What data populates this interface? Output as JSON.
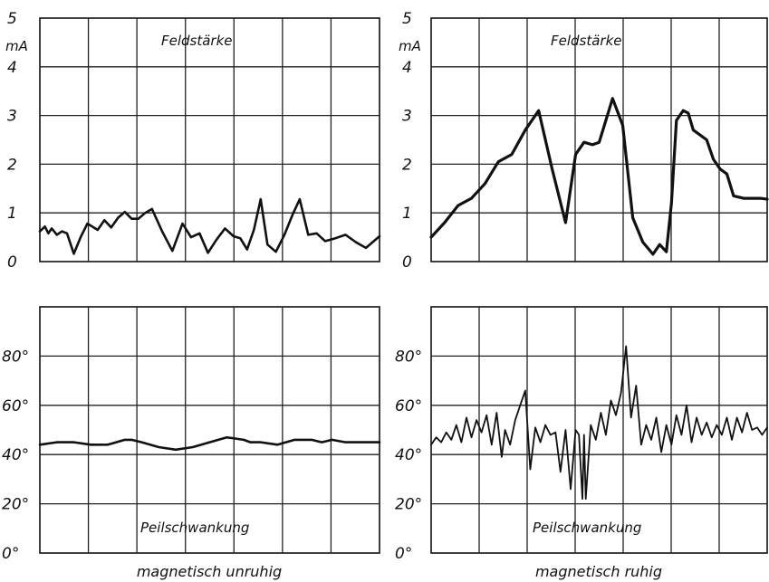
{
  "captions": {
    "left": "magnetisch unruhig",
    "right": "magnetisch ruhig"
  },
  "chart_data": [
    {
      "type": "line",
      "title": "Feldstärke",
      "ylabel": "mA",
      "ylim": [
        0,
        5
      ],
      "yticks": [
        "0",
        "1",
        "2",
        "3",
        "4",
        "5"
      ],
      "xlim": [
        0,
        100
      ],
      "grid": true,
      "series": [
        {
          "x": [
            0,
            1.5,
            2.5,
            3.5,
            5,
            6.5,
            8,
            10,
            12,
            14,
            17,
            19,
            21,
            23,
            25,
            27,
            29,
            31,
            33,
            36,
            39,
            42,
            44.5,
            47,
            49.5,
            52,
            54.5,
            57,
            59,
            61,
            63,
            65,
            67,
            69.5,
            72,
            74.5,
            76.5,
            79,
            81.5,
            84,
            87,
            90,
            93,
            96,
            100
          ],
          "values": [
            0.62,
            0.72,
            0.58,
            0.68,
            0.55,
            0.62,
            0.58,
            0.16,
            0.5,
            0.78,
            0.65,
            0.85,
            0.7,
            0.9,
            1.02,
            0.88,
            0.88,
            1.0,
            1.08,
            0.62,
            0.22,
            0.78,
            0.5,
            0.58,
            0.18,
            0.45,
            0.68,
            0.52,
            0.48,
            0.25,
            0.65,
            1.28,
            0.35,
            0.2,
            0.55,
            0.98,
            1.28,
            0.55,
            0.58,
            0.42,
            0.48,
            0.55,
            0.4,
            0.28,
            0.52
          ]
        }
      ]
    },
    {
      "type": "line",
      "title": "Feldstärke",
      "ylabel": "mA",
      "ylim": [
        0,
        5
      ],
      "yticks": [
        "0",
        "1",
        "2",
        "3",
        "4",
        "5"
      ],
      "xlim": [
        0,
        100
      ],
      "grid": true,
      "series": [
        {
          "x": [
            0,
            4,
            8,
            12,
            16,
            20,
            24,
            28,
            32,
            36,
            40,
            43,
            45.5,
            48,
            50,
            52,
            54,
            57,
            60,
            63,
            66,
            68,
            70,
            71.5,
            73,
            75,
            76.5,
            78,
            80,
            82,
            84,
            86,
            88,
            90,
            93,
            96,
            98,
            100
          ],
          "values": [
            0.5,
            0.8,
            1.15,
            1.3,
            1.6,
            2.05,
            2.2,
            2.7,
            3.1,
            1.9,
            0.8,
            2.2,
            2.45,
            2.4,
            2.45,
            2.9,
            3.35,
            2.8,
            0.9,
            0.4,
            0.15,
            0.35,
            0.2,
            1.2,
            2.9,
            3.1,
            3.05,
            2.7,
            2.6,
            2.5,
            2.1,
            1.9,
            1.8,
            1.35,
            1.3,
            1.3,
            1.3,
            1.28
          ]
        }
      ]
    },
    {
      "type": "line",
      "title": "Peilschwankung",
      "ylim": [
        0,
        100
      ],
      "yticks": [
        "0°",
        "20°",
        "40°",
        "60°",
        "80°"
      ],
      "xlim": [
        0,
        100
      ],
      "grid": true,
      "series": [
        {
          "x": [
            0,
            5,
            10,
            15,
            20,
            25,
            27,
            30,
            35,
            40,
            45,
            50,
            55,
            60,
            62,
            65,
            70,
            75,
            80,
            83,
            86,
            90,
            93,
            96,
            100
          ],
          "values": [
            44,
            45,
            45,
            44,
            44,
            46,
            46,
            45,
            43,
            42,
            43,
            45,
            47,
            46,
            45,
            45,
            44,
            46,
            46,
            45,
            46,
            45,
            45,
            45,
            45
          ]
        }
      ]
    },
    {
      "type": "line",
      "title": "Peilschwankung",
      "ylim": [
        0,
        100
      ],
      "yticks": [
        "0°",
        "20°",
        "40°",
        "60°",
        "80°"
      ],
      "xlim": [
        0,
        100
      ],
      "grid": true,
      "series": [
        {
          "x": [
            0,
            1.5,
            3,
            4.5,
            6,
            7.5,
            9,
            10.5,
            12,
            13.5,
            15,
            16.5,
            18,
            19.5,
            21,
            22,
            23.5,
            25,
            26.5,
            28,
            29.5,
            31,
            32.5,
            34,
            35.5,
            37,
            38.5,
            40,
            41.5,
            43,
            44,
            45,
            45.5,
            46,
            47.5,
            49,
            50.5,
            52,
            53.5,
            55,
            56.5,
            58,
            59.5,
            61,
            62.5,
            64,
            65.5,
            67,
            68.5,
            70,
            71.5,
            73,
            74.5,
            76,
            77.5,
            79,
            80.5,
            82,
            83.5,
            85,
            86.5,
            88,
            89.5,
            91,
            92.5,
            94,
            95.5,
            97,
            98.5,
            100
          ],
          "values": [
            44,
            47,
            45,
            49,
            46,
            52,
            45,
            55,
            47,
            54,
            49,
            56,
            44,
            57,
            39,
            50,
            44,
            54,
            60,
            66,
            34,
            51,
            45,
            52,
            48,
            49,
            33,
            50,
            26,
            50,
            48,
            22,
            48,
            22,
            52,
            46,
            57,
            48,
            62,
            56,
            65,
            84,
            55,
            68,
            44,
            52,
            46,
            55,
            41,
            52,
            44,
            56,
            48,
            60,
            45,
            55,
            48,
            53,
            47,
            52,
            48,
            55,
            46,
            55,
            49,
            57,
            50,
            51,
            48,
            51
          ]
        }
      ]
    }
  ]
}
